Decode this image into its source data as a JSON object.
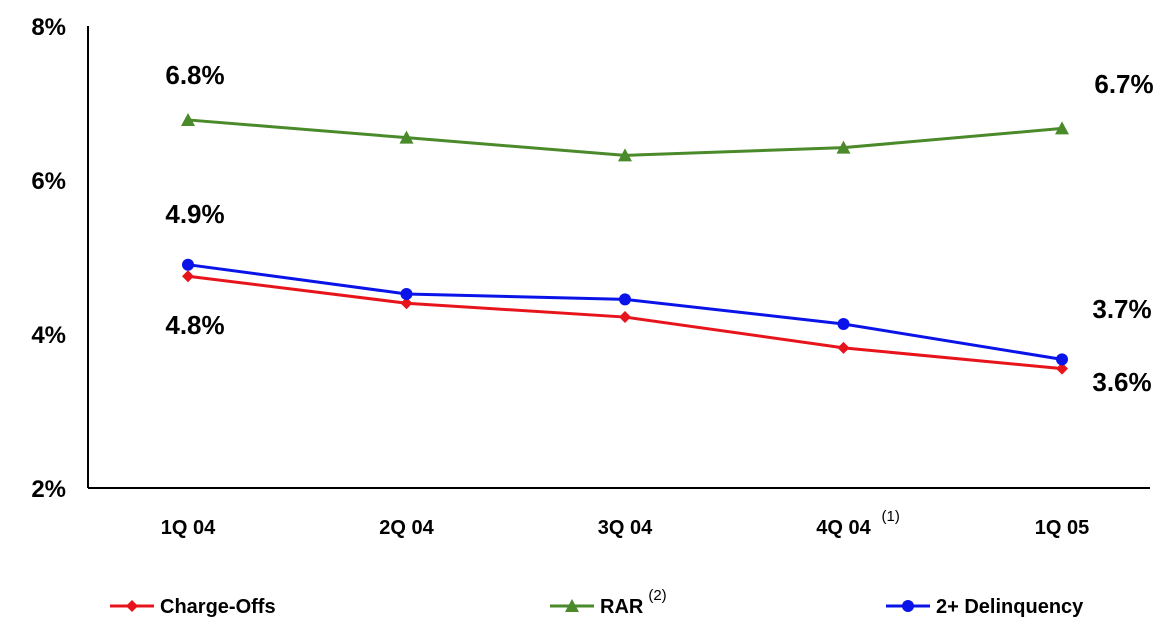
{
  "chart_data": {
    "type": "line",
    "categories": [
      "1Q 04",
      "2Q 04",
      "3Q 04",
      "4Q 04",
      "1Q 05"
    ],
    "category_notes": [
      "",
      "",
      "",
      "(1)",
      ""
    ],
    "yticks": [
      "8%",
      "6%",
      "4%",
      "2%"
    ],
    "ylim": [
      2,
      8
    ],
    "grid": false,
    "legend_position": "bottom",
    "series": [
      {
        "name": "Charge-Offs",
        "note": "",
        "color": "#e8141c",
        "marker": "diamond",
        "values": [
          4.75,
          4.4,
          4.22,
          3.82,
          3.55
        ]
      },
      {
        "name": "RAR",
        "note": "(2)",
        "color": "#4a8a2a",
        "marker": "triangle",
        "values": [
          6.78,
          6.55,
          6.32,
          6.42,
          6.67
        ]
      },
      {
        "name": "2+ Delinquency",
        "note": "",
        "color": "#0a14e8",
        "marker": "circle",
        "values": [
          4.9,
          4.52,
          4.45,
          4.13,
          3.67
        ]
      }
    ],
    "data_labels": [
      {
        "text": "6.8%",
        "series": 1,
        "index": 0
      },
      {
        "text": "6.7%",
        "series": 1,
        "index": 4
      },
      {
        "text": "4.9%",
        "series": 2,
        "index": 0
      },
      {
        "text": "4.8%",
        "series": 0,
        "index": 0
      },
      {
        "text": "3.7%",
        "series": 2,
        "index": 4
      },
      {
        "text": "3.6%",
        "series": 0,
        "index": 4
      }
    ]
  }
}
